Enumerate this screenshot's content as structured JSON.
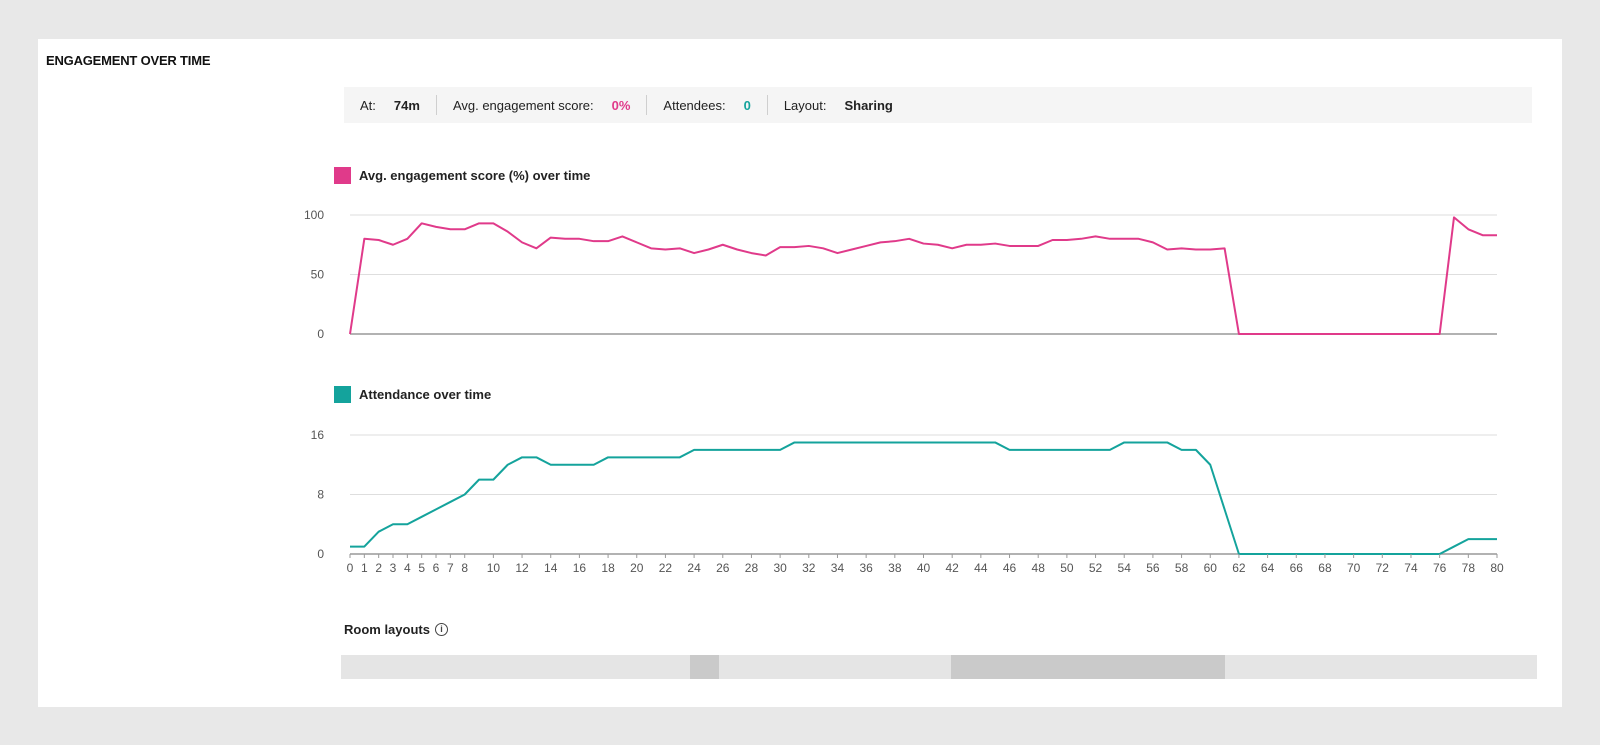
{
  "section_title": "ENGAGEMENT OVER TIME",
  "info": {
    "at_label": "At:",
    "at_value": "74m",
    "score_label": "Avg. engagement score:",
    "score_value": "0%",
    "attendees_label": "Attendees:",
    "attendees_value": "0",
    "layout_label": "Layout:",
    "layout_value": "Sharing"
  },
  "colors": {
    "engagement": "#e03a8a",
    "attendance": "#14a39c",
    "grid": "#dedede",
    "axis": "#999999"
  },
  "chart_data": [
    {
      "type": "line",
      "title": "Avg. engagement score (%) over time",
      "ylim": [
        0,
        100
      ],
      "yticks": [
        0,
        50,
        100
      ],
      "x": [
        0,
        1,
        2,
        3,
        4,
        5,
        6,
        7,
        8,
        9,
        10,
        11,
        12,
        13,
        14,
        15,
        16,
        17,
        18,
        19,
        20,
        21,
        22,
        23,
        24,
        25,
        26,
        27,
        28,
        29,
        30,
        31,
        32,
        33,
        34,
        35,
        36,
        37,
        38,
        39,
        40,
        41,
        42,
        43,
        44,
        45,
        46,
        47,
        48,
        49,
        50,
        51,
        52,
        53,
        54,
        55,
        56,
        57,
        58,
        59,
        60,
        61,
        62,
        63,
        64,
        65,
        66,
        67,
        68,
        69,
        70,
        71,
        72,
        73,
        74,
        75,
        76,
        77,
        78,
        79,
        80
      ],
      "series": [
        {
          "values": [
            0,
            80,
            79,
            75,
            80,
            93,
            90,
            88,
            88,
            93,
            93,
            86,
            77,
            72,
            81,
            80,
            80,
            78,
            78,
            82,
            77,
            72,
            71,
            72,
            68,
            71,
            75,
            71,
            68,
            66,
            73,
            73,
            74,
            72,
            68,
            71,
            74,
            77,
            78,
            80,
            76,
            75,
            72,
            75,
            75,
            76,
            74,
            74,
            74,
            79,
            79,
            80,
            82,
            80,
            80,
            80,
            77,
            71,
            72,
            71,
            71,
            72,
            0,
            0,
            0,
            0,
            0,
            0,
            0,
            0,
            0,
            0,
            0,
            0,
            0,
            0,
            0,
            98,
            88,
            83,
            83
          ]
        }
      ],
      "grid": true,
      "legend": "top-left"
    },
    {
      "type": "line",
      "title": "Attendance over time",
      "ylim": [
        0,
        16
      ],
      "yticks": [
        0,
        8,
        16
      ],
      "xticks": [
        0,
        1,
        2,
        3,
        4,
        5,
        6,
        7,
        8,
        10,
        12,
        14,
        16,
        18,
        20,
        22,
        24,
        26,
        28,
        30,
        32,
        34,
        36,
        38,
        40,
        42,
        44,
        46,
        48,
        50,
        52,
        54,
        56,
        58,
        60,
        62,
        64,
        66,
        68,
        70,
        72,
        74,
        76,
        78,
        80
      ],
      "x": [
        0,
        1,
        2,
        3,
        4,
        5,
        6,
        7,
        8,
        9,
        10,
        11,
        12,
        13,
        14,
        15,
        16,
        17,
        18,
        19,
        20,
        21,
        22,
        23,
        24,
        25,
        26,
        27,
        28,
        29,
        30,
        31,
        32,
        33,
        34,
        35,
        36,
        37,
        38,
        39,
        40,
        41,
        42,
        43,
        44,
        45,
        46,
        47,
        48,
        49,
        50,
        51,
        52,
        53,
        54,
        55,
        56,
        57,
        58,
        59,
        60,
        61,
        62,
        63,
        64,
        65,
        66,
        67,
        68,
        69,
        70,
        71,
        72,
        73,
        74,
        75,
        76,
        77,
        78,
        79,
        80
      ],
      "series": [
        {
          "values": [
            1,
            1,
            3,
            4,
            4,
            5,
            6,
            7,
            8,
            10,
            10,
            12,
            13,
            13,
            12,
            12,
            12,
            12,
            13,
            13,
            13,
            13,
            13,
            13,
            14,
            14,
            14,
            14,
            14,
            14,
            14,
            15,
            15,
            15,
            15,
            15,
            15,
            15,
            15,
            15,
            15,
            15,
            15,
            15,
            15,
            15,
            14,
            14,
            14,
            14,
            14,
            14,
            14,
            14,
            15,
            15,
            15,
            15,
            14,
            14,
            12,
            6,
            0,
            0,
            0,
            0,
            0,
            0,
            0,
            0,
            0,
            0,
            0,
            0,
            0,
            0,
            0,
            1,
            2,
            2,
            2
          ]
        }
      ],
      "grid": true,
      "legend": "top-left"
    }
  ],
  "room_layouts": {
    "title": "Room layouts",
    "info_icon": "i",
    "x_range": [
      0,
      82
    ],
    "segments": [
      {
        "from": 0,
        "to": 23.9,
        "highlight": false
      },
      {
        "from": 23.9,
        "to": 25.9,
        "highlight": true
      },
      {
        "from": 25.9,
        "to": 41.8,
        "highlight": false
      },
      {
        "from": 41.8,
        "to": 60.6,
        "highlight": true
      },
      {
        "from": 60.6,
        "to": 82,
        "highlight": false
      }
    ]
  }
}
